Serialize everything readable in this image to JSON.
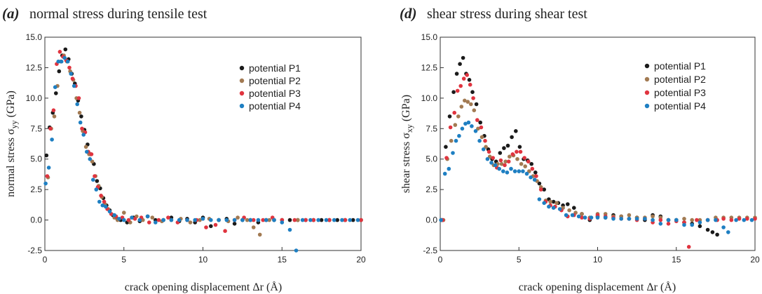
{
  "colors": {
    "P1": "#1a1a1a",
    "P2": "#a27a52",
    "P3": "#e0343f",
    "P4": "#1e7fc2"
  },
  "chart_data": [
    {
      "type": "scatter",
      "panel_letter": "(a)",
      "title": "normal stress during tensile test",
      "xlabel": "crack opening displacement Δr (Å)",
      "ylabel_main": "normal stress σ",
      "ylabel_sub": "yy",
      "ylabel_unit": " (GPa)",
      "xlim": [
        0,
        20
      ],
      "ylim": [
        -2.5,
        15
      ],
      "xticks": [
        "0",
        "5",
        "10",
        "15",
        "20"
      ],
      "yticks": [
        "-2.5",
        "0.0",
        "2.5",
        "5.0",
        "7.5",
        "10.0",
        "12.5",
        "15.0"
      ],
      "legend": [
        "potential P1",
        "potential P2",
        "potential P3",
        "potential P4"
      ],
      "legend_position": "top-right",
      "series": [
        {
          "name": "potential P1",
          "color_key": "P1",
          "x": [
            0.1,
            0.3,
            0.5,
            0.7,
            0.9,
            1.1,
            1.3,
            1.5,
            1.7,
            1.9,
            2.1,
            2.3,
            2.5,
            2.7,
            2.9,
            3.1,
            3.3,
            3.5,
            3.7,
            3.9,
            4.1,
            4.3,
            4.5,
            4.8,
            5.2,
            5.6,
            6.0,
            6.5,
            7.0,
            7.5,
            8.0,
            8.5,
            9.0,
            9.5,
            10.0,
            10.5,
            11.0,
            11.5,
            12.0,
            12.5,
            13.0,
            13.5,
            14.0,
            14.5,
            15.0,
            15.5,
            16.0,
            16.5,
            17.0,
            17.5,
            18.0,
            18.5,
            19.0,
            19.5,
            20.0
          ],
          "y": [
            5.3,
            7.6,
            8.8,
            10.4,
            12.2,
            13.5,
            14.0,
            13.2,
            12.0,
            11.2,
            9.8,
            8.5,
            7.4,
            6.2,
            5.4,
            4.6,
            3.2,
            2.6,
            1.8,
            1.2,
            0.8,
            0.4,
            0.2,
            0.0,
            -0.2,
            0.2,
            -0.1,
            0.3,
            0.0,
            0.0,
            0.2,
            -0.1,
            0.1,
            -0.2,
            0.2,
            -0.5,
            0.0,
            0.1,
            -0.3,
            0.0,
            0.0,
            -0.2,
            0.0,
            0.0,
            0.0,
            0.0,
            0.0,
            0.0,
            0.0,
            0.0,
            0.0,
            0.0,
            0.0,
            0.0,
            0.0
          ]
        },
        {
          "name": "potential P2",
          "color_key": "P2",
          "x": [
            0.2,
            0.4,
            0.6,
            0.8,
            1.0,
            1.2,
            1.4,
            1.6,
            1.8,
            2.0,
            2.2,
            2.4,
            2.6,
            2.8,
            3.0,
            3.2,
            3.4,
            3.6,
            3.8,
            4.0,
            4.2,
            4.4,
            4.6,
            5.0,
            5.4,
            5.8,
            6.2,
            6.8,
            7.4,
            8.0,
            8.6,
            9.2,
            9.8,
            10.4,
            11.0,
            11.6,
            12.2,
            12.8,
            13.2,
            13.6,
            14.2,
            15.0,
            16.0,
            17.0,
            18.0,
            19.0,
            20.0
          ],
          "y": [
            3.5,
            7.5,
            8.5,
            11.0,
            13.0,
            13.5,
            13.0,
            12.2,
            11.5,
            10.0,
            8.8,
            7.3,
            6.0,
            5.4,
            4.8,
            3.6,
            2.8,
            1.9,
            1.3,
            0.9,
            0.5,
            0.2,
            0.0,
            0.6,
            -0.2,
            0.3,
            0.0,
            0.2,
            -0.1,
            0.0,
            0.1,
            -0.2,
            0.0,
            0.1,
            0.0,
            -0.1,
            0.2,
            0.0,
            -0.6,
            -1.2,
            0.0,
            0.0,
            0.0,
            0.0,
            0.0,
            0.0,
            0.0
          ]
        },
        {
          "name": "potential P3",
          "color_key": "P3",
          "x": [
            0.15,
            0.35,
            0.55,
            0.75,
            0.95,
            1.15,
            1.35,
            1.55,
            1.75,
            1.95,
            2.15,
            2.35,
            2.55,
            2.75,
            2.95,
            3.15,
            3.35,
            3.55,
            3.75,
            3.95,
            4.2,
            4.5,
            4.9,
            5.3,
            5.7,
            6.1,
            6.6,
            7.2,
            7.8,
            8.4,
            9.0,
            9.6,
            10.2,
            10.8,
            11.4,
            12.0,
            12.6,
            13.2,
            13.8,
            14.4,
            15.0,
            15.8,
            16.5,
            17.0,
            18.0,
            19.0,
            20.0
          ],
          "y": [
            3.6,
            7.5,
            9.0,
            12.8,
            13.8,
            13.4,
            13.1,
            12.5,
            11.6,
            11.0,
            10.0,
            7.5,
            7.2,
            5.6,
            5.4,
            3.6,
            2.7,
            2.0,
            1.5,
            0.9,
            0.5,
            0.3,
            0.2,
            0.0,
            0.1,
            0.2,
            -0.2,
            0.0,
            0.2,
            -0.2,
            0.0,
            0.0,
            -0.6,
            -0.4,
            -0.9,
            0.0,
            0.2,
            0.0,
            0.0,
            0.2,
            0.0,
            0.0,
            0.0,
            0.0,
            0.0,
            0.0,
            0.0
          ]
        },
        {
          "name": "potential P4",
          "color_key": "P4",
          "x": [
            0.05,
            0.25,
            0.45,
            0.65,
            0.85,
            1.05,
            1.25,
            1.45,
            1.65,
            1.85,
            2.05,
            2.25,
            2.45,
            2.65,
            2.85,
            3.05,
            3.25,
            3.45,
            3.65,
            3.85,
            4.1,
            4.4,
            4.7,
            5.0,
            5.5,
            6.0,
            6.5,
            7.0,
            7.5,
            8.0,
            8.5,
            9.0,
            9.5,
            10.0,
            10.5,
            11.0,
            11.5,
            12.0,
            12.5,
            13.0,
            13.5,
            14.0,
            14.5,
            15.0,
            15.5,
            15.9,
            16.3,
            16.8,
            17.3,
            17.8,
            18.3,
            18.8,
            19.3,
            19.8
          ],
          "y": [
            3.0,
            4.3,
            6.6,
            10.9,
            13.0,
            13.0,
            13.3,
            13.0,
            12.0,
            11.0,
            9.5,
            8.0,
            7.0,
            5.6,
            5.0,
            3.3,
            2.5,
            1.5,
            1.2,
            1.1,
            0.7,
            0.4,
            0.1,
            0.0,
            0.2,
            0.0,
            0.3,
            -0.2,
            0.0,
            0.0,
            0.0,
            0.0,
            0.0,
            0.1,
            0.0,
            0.0,
            0.0,
            0.0,
            0.0,
            0.0,
            0.0,
            0.0,
            0.0,
            -0.2,
            -0.8,
            -2.5,
            0.0,
            0.0,
            0.0,
            0.0,
            0.0,
            0.0,
            0.0,
            0.0
          ]
        }
      ]
    },
    {
      "type": "scatter",
      "panel_letter": "(d)",
      "title": "shear stress during shear test",
      "xlabel": "crack opening displacement Δr (Å)",
      "ylabel_main": "shear stress σ",
      "ylabel_sub": "xy",
      "ylabel_unit": " (GPa)",
      "xlim": [
        0,
        20
      ],
      "ylim": [
        -2.5,
        15
      ],
      "xticks": [
        "0",
        "5",
        "10",
        "15",
        "20"
      ],
      "yticks": [
        "-2.5",
        "0.0",
        "2.5",
        "5.0",
        "7.5",
        "10.0",
        "12.5",
        "15.0"
      ],
      "legend": [
        "potential P1",
        "potential P2",
        "potential P3",
        "potential P4"
      ],
      "legend_position": "top-right",
      "series": [
        {
          "name": "potential P1",
          "color_key": "P1",
          "x": [
            0.1,
            0.35,
            0.6,
            0.85,
            1.05,
            1.25,
            1.45,
            1.65,
            1.85,
            2.05,
            2.3,
            2.55,
            2.8,
            3.05,
            3.3,
            3.55,
            3.8,
            4.05,
            4.3,
            4.55,
            4.8,
            5.05,
            5.3,
            5.55,
            5.8,
            6.05,
            6.3,
            6.6,
            6.9,
            7.2,
            7.5,
            7.8,
            8.1,
            8.5,
            9.0,
            9.5,
            10.0,
            10.5,
            11.0,
            11.5,
            12.0,
            12.5,
            13.0,
            13.5,
            14.0,
            14.5,
            15.0,
            15.5,
            16.0,
            16.5,
            17.0,
            17.3,
            17.6
          ],
          "y": [
            0.0,
            6.0,
            8.5,
            10.5,
            12.0,
            12.8,
            13.3,
            12.0,
            11.5,
            10.5,
            9.5,
            8.0,
            6.9,
            5.8,
            5.0,
            4.8,
            5.5,
            5.9,
            6.1,
            6.8,
            7.3,
            6.0,
            5.0,
            4.9,
            4.6,
            3.9,
            3.0,
            2.5,
            1.7,
            1.5,
            1.4,
            1.2,
            1.3,
            1.0,
            0.5,
            0.0,
            0.3,
            0.2,
            0.4,
            0.3,
            0.1,
            0.2,
            0.0,
            0.4,
            0.3,
            0.0,
            0.0,
            -0.2,
            -0.3,
            -0.5,
            -0.8,
            -1.0,
            -1.2
          ]
        },
        {
          "name": "potential P2",
          "color_key": "P2",
          "x": [
            0.2,
            0.45,
            0.7,
            0.95,
            1.15,
            1.35,
            1.55,
            1.75,
            1.95,
            2.15,
            2.4,
            2.65,
            2.9,
            3.15,
            3.4,
            3.65,
            3.9,
            4.15,
            4.4,
            4.65,
            4.9,
            5.15,
            5.4,
            5.65,
            5.9,
            6.15,
            6.4,
            6.7,
            7.0,
            7.4,
            7.8,
            8.2,
            8.6,
            9.0,
            9.5,
            10.0,
            10.5,
            11.0,
            11.5,
            12.0,
            12.5,
            13.0,
            13.5,
            14.0,
            14.5,
            15.0,
            15.5,
            16.0,
            16.5,
            17.0,
            17.5,
            18.0,
            18.5,
            19.0,
            19.5,
            20.0
          ],
          "y": [
            0.0,
            5.0,
            6.5,
            7.8,
            8.5,
            9.3,
            9.8,
            9.7,
            9.5,
            9.0,
            7.5,
            6.8,
            6.0,
            5.2,
            4.5,
            4.6,
            4.6,
            4.8,
            5.2,
            5.3,
            5.0,
            4.6,
            4.4,
            4.0,
            3.6,
            3.2,
            2.7,
            1.6,
            1.5,
            1.4,
            1.0,
            0.8,
            0.6,
            0.5,
            0.2,
            0.5,
            0.5,
            0.3,
            0.3,
            0.4,
            0.2,
            0.2,
            0.3,
            0.2,
            0.0,
            0.0,
            0.1,
            0.0,
            0.0,
            0.0,
            0.2,
            0.2,
            0.2,
            0.2,
            0.2,
            0.2
          ]
        },
        {
          "name": "potential P3",
          "color_key": "P3",
          "x": [
            0.15,
            0.4,
            0.65,
            0.9,
            1.1,
            1.3,
            1.5,
            1.7,
            1.9,
            2.1,
            2.35,
            2.6,
            2.85,
            3.1,
            3.35,
            3.6,
            3.85,
            4.1,
            4.35,
            4.6,
            4.85,
            5.1,
            5.35,
            5.6,
            5.85,
            6.1,
            6.4,
            6.7,
            7.0,
            7.3,
            7.7,
            8.1,
            8.5,
            9.0,
            9.5,
            10.0,
            10.5,
            11.0,
            11.5,
            12.0,
            12.5,
            13.0,
            13.5,
            14.0,
            14.5,
            15.0,
            15.5,
            15.8,
            16.3,
            17.0,
            17.6,
            18.0,
            18.5,
            19.0,
            19.5,
            20.0
          ],
          "y": [
            0.0,
            5.1,
            7.6,
            8.8,
            10.6,
            11.0,
            11.6,
            11.9,
            11.1,
            10.0,
            8.2,
            7.6,
            6.5,
            5.6,
            5.1,
            4.3,
            4.9,
            4.5,
            4.8,
            5.4,
            5.6,
            5.6,
            5.1,
            4.8,
            4.2,
            3.6,
            2.5,
            1.5,
            1.2,
            1.1,
            0.8,
            0.3,
            0.4,
            0.2,
            0.1,
            0.4,
            0.3,
            0.2,
            0.1,
            0.1,
            0.0,
            0.1,
            -0.2,
            0.0,
            -0.3,
            -0.1,
            -0.2,
            -2.2,
            0.0,
            0.0,
            0.0,
            0.1,
            0.0,
            0.1,
            0.1,
            0.1
          ]
        },
        {
          "name": "potential P4",
          "color_key": "P4",
          "x": [
            0.05,
            0.3,
            0.55,
            0.8,
            1.0,
            1.2,
            1.4,
            1.6,
            1.8,
            2.0,
            2.25,
            2.5,
            2.75,
            3.0,
            3.25,
            3.5,
            3.75,
            4.0,
            4.25,
            4.5,
            4.75,
            5.0,
            5.25,
            5.5,
            5.75,
            6.0,
            6.3,
            6.6,
            6.9,
            7.2,
            7.6,
            8.0,
            8.4,
            8.8,
            9.2,
            9.6,
            10.0,
            10.5,
            11.0,
            11.5,
            12.0,
            12.5,
            13.0,
            13.5,
            14.0,
            14.5,
            15.0,
            15.5,
            16.0,
            16.5,
            17.0,
            17.5,
            18.0,
            18.3,
            18.8,
            19.3,
            19.8
          ],
          "y": [
            0.0,
            3.8,
            4.2,
            5.5,
            6.5,
            6.9,
            7.5,
            7.9,
            8.0,
            7.7,
            7.3,
            6.5,
            5.8,
            5.0,
            4.7,
            4.5,
            4.2,
            4.0,
            3.9,
            4.2,
            4.0,
            4.0,
            4.0,
            3.8,
            3.5,
            3.3,
            1.7,
            1.4,
            1.1,
            1.0,
            0.9,
            0.4,
            0.4,
            0.3,
            0.2,
            0.2,
            0.2,
            0.2,
            0.1,
            0.1,
            0.1,
            0.1,
            0.1,
            0.0,
            -0.3,
            0.0,
            0.0,
            -0.4,
            -0.4,
            -0.2,
            0.0,
            0.0,
            -0.6,
            -1.0,
            0.0,
            0.0,
            0.0
          ]
        }
      ]
    }
  ]
}
